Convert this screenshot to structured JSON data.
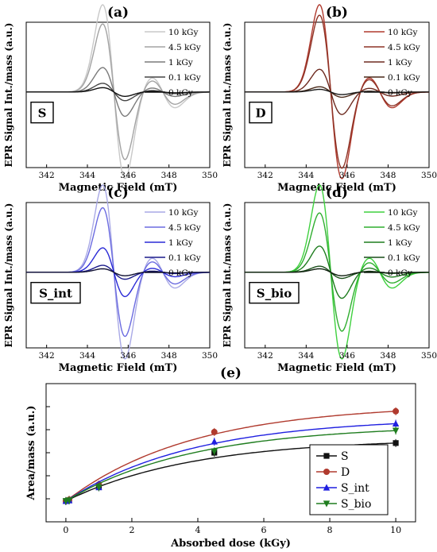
{
  "panels": [
    {
      "letter": "(a)",
      "sample": "S",
      "xlabel": "Magnetic Field (mT)",
      "ylabel": "EPR Signal Int./mass (a.u.)",
      "xlim": [
        341,
        350
      ],
      "xticks": [
        342,
        344,
        346,
        348,
        350
      ],
      "center": 345.3,
      "legend": [
        "10 kGy",
        "4.5 kGy",
        "1 kGy",
        "0.1 kGy",
        "0 kGy"
      ],
      "colors": [
        "#c8c8c8",
        "#a3a3a3",
        "#7a7a7a",
        "#454545",
        "#111111"
      ],
      "amplitudes": [
        1.0,
        0.78,
        0.28,
        0.1,
        0.05
      ]
    },
    {
      "letter": "(b)",
      "sample": "D",
      "xlabel": "Magnetic Field (mT)",
      "ylabel": "EPR Signal Int./mass (a.u.)",
      "xlim": [
        341,
        350
      ],
      "xticks": [
        342,
        344,
        346,
        348,
        350
      ],
      "center": 345.2,
      "legend": [
        "10 kGy",
        "4.5 kGy",
        "1 kGy",
        "0.1 kGy",
        "0 kGy"
      ],
      "colors": [
        "#b03a2e",
        "#8e3326",
        "#6e2b20",
        "#4a2a1a",
        "#1a1a1a"
      ],
      "amplitudes": [
        1.0,
        0.88,
        0.26,
        0.06,
        0.03
      ]
    },
    {
      "letter": "(c)",
      "sample": "S_int",
      "xlabel": "Magnetic Field (mT)",
      "ylabel": "EPR Signal Int./mass (a.u.)",
      "xlim": [
        341,
        350
      ],
      "xticks": [
        342,
        344,
        346,
        348,
        350
      ],
      "center": 345.3,
      "legend": [
        "10 kGy",
        "4.5 kGy",
        "1 kGy",
        "0.1 kGy",
        "0 kGy"
      ],
      "colors": [
        "#a9a9e6",
        "#6b6be0",
        "#2a2ad6",
        "#1b1b8a",
        "#111133"
      ],
      "amplitudes": [
        1.0,
        0.74,
        0.28,
        0.08,
        0.04
      ]
    },
    {
      "letter": "(d)",
      "sample": "S_bio",
      "xlabel": "Magnetic Field (mT)",
      "ylabel": "EPR Signal Int./mass (a.u.)",
      "xlim": [
        341,
        350
      ],
      "xticks": [
        342,
        344,
        346,
        348,
        350
      ],
      "center": 345.2,
      "legend": [
        "10 kGy",
        "4.5 kGy",
        "1 kGy",
        "0.1 kGy",
        "0 kGy"
      ],
      "colors": [
        "#3fd13f",
        "#2fae2f",
        "#1f7d1f",
        "#1a4f1a",
        "#0f1f0f"
      ],
      "amplitudes": [
        1.0,
        0.68,
        0.3,
        0.07,
        0.04
      ]
    }
  ],
  "chart_data": {
    "type": "scatter",
    "title": "(e)",
    "xlabel": "Absorbed dose (kGy)",
    "ylabel": "Area/mass (a.u.)",
    "xlim": [
      -0.6,
      10.6
    ],
    "xticks": [
      0,
      2,
      4,
      6,
      8,
      10
    ],
    "ylim": [
      0,
      1
    ],
    "legend_position": "bottom-right",
    "series": [
      {
        "name": "S",
        "color": "#111111",
        "marker": "square",
        "x": [
          0,
          0.1,
          1,
          4.5,
          10
        ],
        "y": [
          0.15,
          0.155,
          0.25,
          0.5,
          0.57
        ],
        "fit": "saturating"
      },
      {
        "name": "D",
        "color": "#b03a2e",
        "marker": "circle",
        "x": [
          0,
          0.1,
          1,
          4.5,
          10
        ],
        "y": [
          0.15,
          0.16,
          0.27,
          0.65,
          0.8
        ],
        "fit": "saturating"
      },
      {
        "name": "S_int",
        "color": "#1f1fe0",
        "marker": "triangle",
        "x": [
          0,
          0.1,
          1,
          4.5,
          10
        ],
        "y": [
          0.15,
          0.155,
          0.25,
          0.58,
          0.71
        ],
        "fit": "saturating"
      },
      {
        "name": "S_bio",
        "color": "#1f7d1f",
        "marker": "tri-down",
        "x": [
          0,
          0.1,
          1,
          4.5,
          10
        ],
        "y": [
          0.15,
          0.155,
          0.25,
          0.51,
          0.66
        ],
        "fit": "saturating"
      }
    ]
  }
}
